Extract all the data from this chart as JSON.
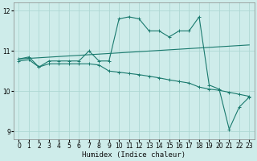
{
  "xlabel": "Humidex (Indice chaleur)",
  "bg_color": "#ceecea",
  "grid_color": "#aed8d4",
  "line_color": "#1a7a6e",
  "xlim": [
    -0.5,
    23.5
  ],
  "ylim": [
    8.8,
    12.2
  ],
  "yticks": [
    9,
    10,
    11,
    12
  ],
  "xticks": [
    0,
    1,
    2,
    3,
    4,
    5,
    6,
    7,
    8,
    9,
    10,
    11,
    12,
    13,
    14,
    15,
    16,
    17,
    18,
    19,
    20,
    21,
    22,
    23
  ],
  "line1_x": [
    0,
    1,
    2,
    3,
    4,
    5,
    6,
    7,
    8,
    9,
    10,
    11,
    12,
    13,
    14,
    15,
    16,
    17,
    18,
    19,
    20,
    21,
    22,
    23
  ],
  "line1_y": [
    10.8,
    10.85,
    10.6,
    10.75,
    10.75,
    10.75,
    10.75,
    11.0,
    10.75,
    10.75,
    11.8,
    11.85,
    11.8,
    11.5,
    11.5,
    11.35,
    11.5,
    11.5,
    11.85,
    10.15,
    10.05,
    9.05,
    9.6,
    9.85
  ],
  "line2_x": [
    0,
    1,
    2,
    3,
    4,
    5,
    6,
    7,
    8,
    9,
    10,
    11,
    12,
    13,
    14,
    15,
    16,
    17,
    18,
    19,
    20,
    21,
    22,
    23
  ],
  "line2_y": [
    10.75,
    10.78,
    10.6,
    10.68,
    10.68,
    10.68,
    10.68,
    10.68,
    10.65,
    10.5,
    10.47,
    10.44,
    10.41,
    10.37,
    10.33,
    10.28,
    10.24,
    10.2,
    10.1,
    10.05,
    10.02,
    9.97,
    9.92,
    9.87
  ],
  "line3_x": [
    0,
    23
  ],
  "line3_y": [
    10.8,
    11.15
  ]
}
